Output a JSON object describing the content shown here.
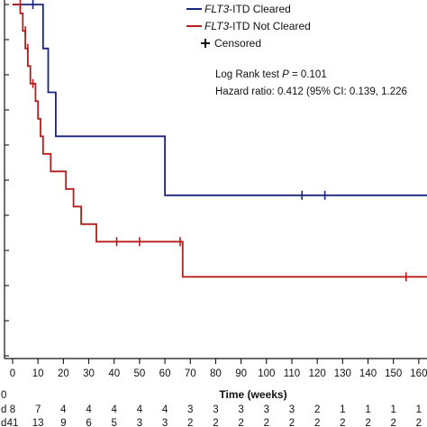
{
  "chart_data": {
    "type": "line",
    "title": "",
    "xlabel": "Time (weeks)",
    "ylabel": "",
    "xlim": [
      0,
      165
    ],
    "ylim": [
      0,
      100
    ],
    "x_ticks": [
      "0",
      "10",
      "20",
      "30",
      "40",
      "50",
      "60",
      "70",
      "80",
      "90",
      "100",
      "110",
      "120",
      "130",
      "140",
      "150",
      "160"
    ],
    "legend": {
      "position": "top-right",
      "entries": [
        {
          "italic": "FLT3",
          "rest": "-ITD Cleared",
          "color": "#1a237e"
        },
        {
          "italic": "FLT3",
          "rest": "-ITD Not Cleared",
          "color": "#b71c1c"
        }
      ],
      "censored_label": "Censored"
    },
    "stats": {
      "line1_prefix": "Log Rank test ",
      "line1_p": "P",
      "line1_suffix": " = 0.101",
      "line2": "Hazard ratio: 0.412 (95% CI: 0.139, 1.226"
    },
    "series": [
      {
        "name": "FLT3-ITD Cleared",
        "color": "#1a237e",
        "steps": [
          [
            0,
            100
          ],
          [
            12,
            100
          ],
          [
            12,
            87.5
          ],
          [
            14,
            87.5
          ],
          [
            14,
            75
          ],
          [
            17,
            75
          ],
          [
            17,
            62.5
          ],
          [
            60,
            62.5
          ],
          [
            60,
            45.7
          ],
          [
            168,
            45.7
          ]
        ],
        "censored": [
          [
            8,
            100
          ],
          [
            114,
            45.7
          ],
          [
            123,
            45.7
          ]
        ]
      },
      {
        "name": "FLT3-ITD Not Cleared",
        "color": "#b71c1c",
        "steps": [
          [
            0,
            100
          ],
          [
            3,
            100
          ],
          [
            3,
            97.5
          ],
          [
            4,
            97.5
          ],
          [
            4,
            92.5
          ],
          [
            5,
            92.5
          ],
          [
            5,
            87.5
          ],
          [
            6,
            87.5
          ],
          [
            6,
            82.5
          ],
          [
            7,
            82.5
          ],
          [
            7,
            77.5
          ],
          [
            9,
            77.5
          ],
          [
            9,
            72.5
          ],
          [
            10,
            72.5
          ],
          [
            10,
            67.5
          ],
          [
            11,
            67.5
          ],
          [
            11,
            62.5
          ],
          [
            12,
            62.5
          ],
          [
            12,
            57.5
          ],
          [
            15,
            57.5
          ],
          [
            15,
            52.5
          ],
          [
            21,
            52.5
          ],
          [
            21,
            47.5
          ],
          [
            24,
            47.5
          ],
          [
            24,
            42.5
          ],
          [
            27,
            42.5
          ],
          [
            27,
            37.5
          ],
          [
            33,
            37.5
          ],
          [
            33,
            32.5
          ],
          [
            67,
            32.5
          ],
          [
            67,
            22.5
          ],
          [
            168,
            22.5
          ]
        ],
        "censored": [
          [
            3,
            100
          ],
          [
            5,
            92.5
          ],
          [
            6,
            87.5
          ],
          [
            8,
            77.5
          ],
          [
            41,
            32.5
          ],
          [
            50,
            32.5
          ],
          [
            66,
            32.5
          ],
          [
            155,
            22.5
          ]
        ]
      }
    ],
    "risk_table": {
      "row_labels": [
        "d",
        "d"
      ],
      "rows": [
        [
          "8",
          "7",
          "4",
          "4",
          "4",
          "4",
          "4",
          "3",
          "3",
          "3",
          "3",
          "3",
          "2",
          "1",
          "1",
          "1",
          "1"
        ],
        [
          "41",
          "13",
          "9",
          "6",
          "5",
          "3",
          "3",
          "2",
          "2",
          "2",
          "2",
          "2",
          "2",
          "2",
          "2",
          "2",
          "2"
        ]
      ],
      "header_label": "0"
    }
  }
}
